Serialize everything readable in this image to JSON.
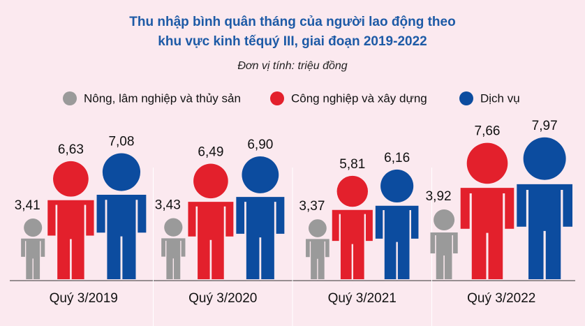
{
  "chart_data": {
    "type": "pictogram",
    "title": "Thu nhập bình quân tháng của người lao động theo khu vực kinh tếquý III, giai đoạn 2019-2022",
    "subtitle": "Đơn vị tính: triệu đồng",
    "categories": [
      "Quý 3/2019",
      "Quý 3/2020",
      "Quý 3/2021",
      "Quý 3/2022"
    ],
    "series": [
      {
        "name": "Nông, lâm nghiệp và thủy sản",
        "color": "#9a9a9a",
        "values": [
          3.41,
          3.43,
          3.37,
          3.92
        ],
        "value_labels": [
          "3,41",
          "3,43",
          "3,37",
          "3,92"
        ]
      },
      {
        "name": "Công nghiệp và xây dựng",
        "color": "#e3202c",
        "values": [
          6.63,
          6.49,
          5.81,
          7.66
        ],
        "value_labels": [
          "6,63",
          "6,49",
          "5,81",
          "7,66"
        ]
      },
      {
        "name": "Dịch vụ",
        "color": "#0c4c9f",
        "values": [
          7.08,
          6.9,
          6.16,
          7.97
        ],
        "value_labels": [
          "7,08",
          "6,90",
          "6,16",
          "7,97"
        ]
      }
    ],
    "legend": "top"
  }
}
